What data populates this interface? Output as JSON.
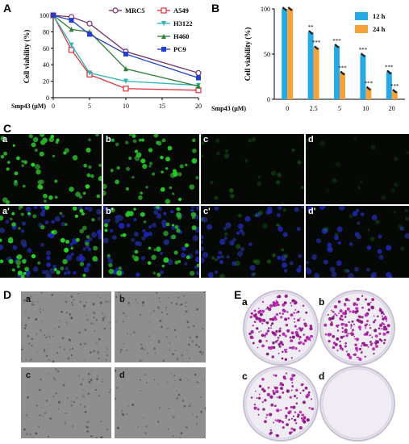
{
  "figure": {
    "panel_labels": [
      "A",
      "B",
      "C",
      "D",
      "E"
    ],
    "panelC_labels": [
      "a",
      "b",
      "c",
      "d",
      "a'",
      "b'",
      "c'",
      "d'"
    ],
    "panelD_labels": [
      "a",
      "b",
      "c",
      "d"
    ],
    "panelE_labels": [
      "a",
      "b",
      "c",
      "d"
    ]
  },
  "chart_data": [
    {
      "type": "line",
      "xlabel": "Smp43 (μM)",
      "ylabel": "Cell viability (%)",
      "x": [
        0,
        2.5,
        5,
        10,
        20
      ],
      "xlim": [
        0,
        20
      ],
      "ylim": [
        0,
        100
      ],
      "xticks": [
        "0",
        "5",
        "10",
        "15",
        "20"
      ],
      "yticks": [
        "0",
        "20",
        "40",
        "60",
        "80",
        "100"
      ],
      "series": [
        {
          "name": "MRC5",
          "values": [
            100,
            98,
            90,
            56,
            30
          ],
          "color": "#7b2d6e",
          "marker": "circle-open"
        },
        {
          "name": "A549",
          "values": [
            100,
            58,
            28,
            11,
            9
          ],
          "color": "#e0303a",
          "marker": "square-open"
        },
        {
          "name": "H3122",
          "values": [
            100,
            64,
            30,
            20,
            15
          ],
          "color": "#2cb5b5",
          "marker": "triangle-down"
        },
        {
          "name": "H460",
          "values": [
            100,
            83,
            80,
            35,
            14
          ],
          "color": "#2e7d32",
          "marker": "triangle-up"
        },
        {
          "name": "PC9",
          "values": [
            100,
            94,
            77,
            53,
            24
          ],
          "color": "#1f3ec9",
          "marker": "square"
        }
      ],
      "legend": "top-right",
      "grid": false
    },
    {
      "type": "bar",
      "xlabel": "Smp43 (μM)",
      "ylabel": "Cell viability (%)",
      "categories": [
        "0",
        "2.5",
        "5",
        "10",
        "20"
      ],
      "ylim": [
        0,
        100
      ],
      "yticks": [
        "0",
        "50",
        "100"
      ],
      "series": [
        {
          "name": "12 h",
          "values": [
            100,
            74,
            59,
            49,
            30
          ],
          "color": "#29a8e6"
        },
        {
          "name": "24 h",
          "values": [
            100,
            57,
            29,
            12,
            9
          ],
          "color": "#f5a23c"
        }
      ],
      "significance": {
        "12 h": [
          "",
          "**",
          "***",
          "***",
          "***"
        ],
        "24 h": [
          "",
          "***",
          "***",
          "***",
          "***"
        ]
      },
      "legend": "top-right",
      "grid": false
    }
  ]
}
